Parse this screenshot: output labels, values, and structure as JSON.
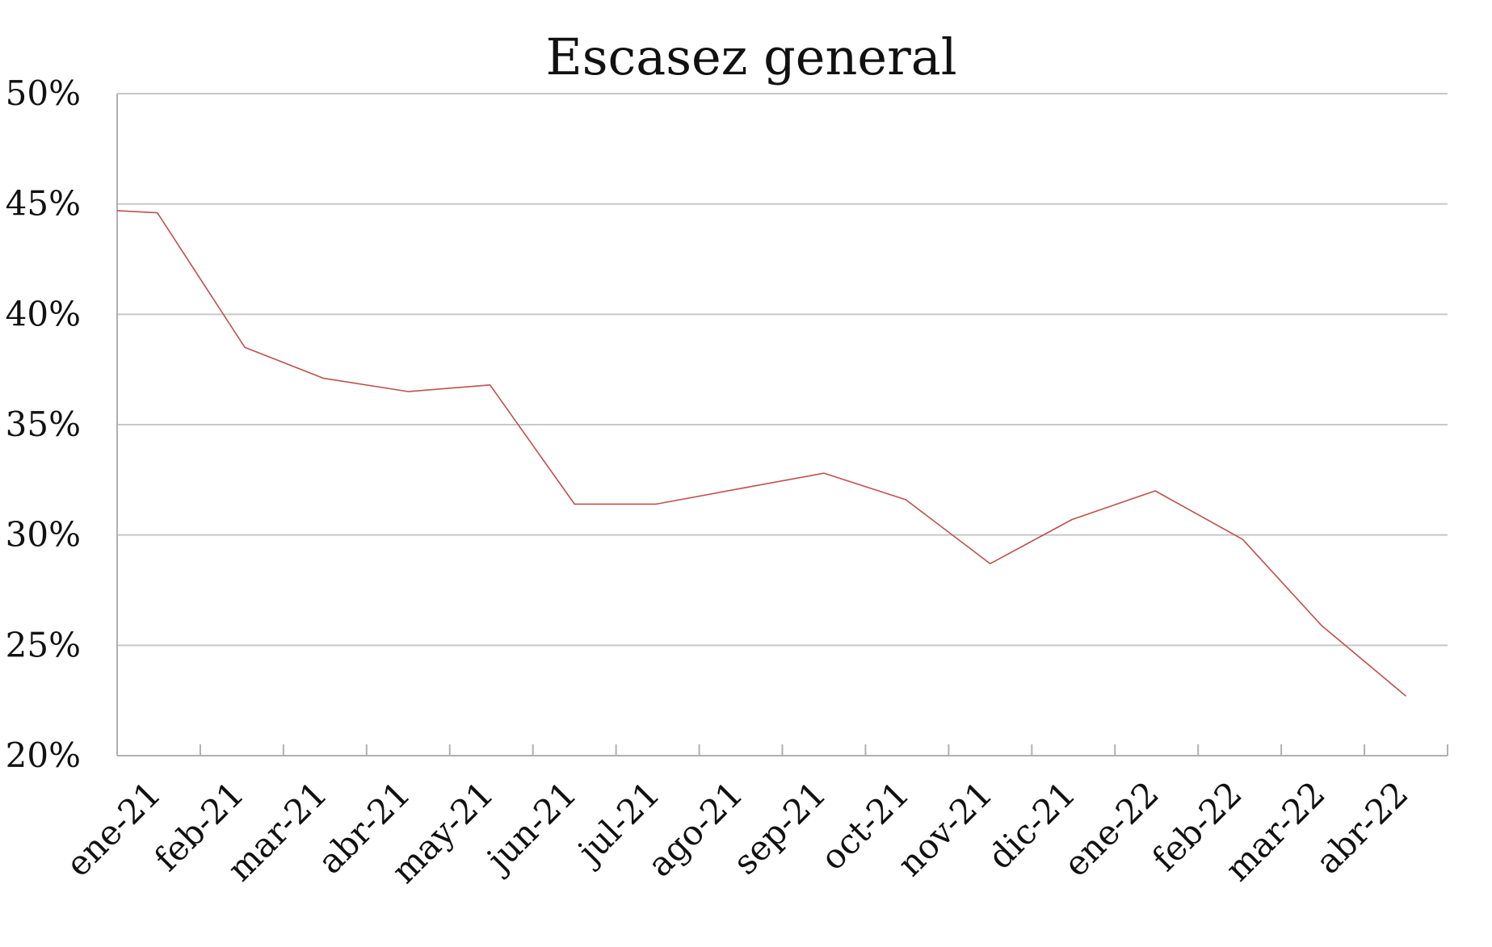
{
  "chart_data": {
    "type": "line",
    "title": "Escasez general",
    "xlabel": "",
    "ylabel": "",
    "ylim": [
      0.2,
      0.5
    ],
    "y_ticks": [
      "50%",
      "45%",
      "40%",
      "35%",
      "30%",
      "25%",
      "20%"
    ],
    "y_tick_values": [
      0.5,
      0.45,
      0.4,
      0.35,
      0.3,
      0.25,
      0.2
    ],
    "grid": "horizontal",
    "legend": "none",
    "categories": [
      "ene-21",
      "feb-21",
      "mar-21",
      "abr-21",
      "may-21",
      "jun-21",
      "jul-21",
      "ago-21",
      "sep-21",
      "oct-21",
      "nov-21",
      "dic-21",
      "ene-22",
      "feb-22",
      "mar-22",
      "abr-22"
    ],
    "series": [
      {
        "color": "#c0504d",
        "x": [
          "2021-01-01",
          "2021-01-16",
          "2021-02-16",
          "2021-03-16",
          "2021-04-16",
          "2021-05-16",
          "2021-06-16",
          "2021-07-16",
          "2021-08-16",
          "2021-09-16",
          "2021-10-16",
          "2021-11-16",
          "2021-12-16",
          "2022-01-16",
          "2022-02-16",
          "2022-03-16",
          "2022-04-16"
        ],
        "values": [
          0.447,
          0.446,
          0.385,
          0.371,
          0.365,
          0.368,
          0.314,
          0.314,
          0.321,
          0.328,
          0.316,
          0.287,
          0.307,
          0.32,
          0.298,
          0.259,
          0.227
        ]
      }
    ]
  }
}
